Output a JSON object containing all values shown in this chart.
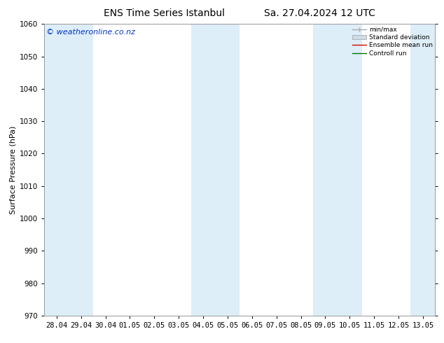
{
  "title": "ENS Time Series Istanbul",
  "date_label": "Sa. 27.04.2024 12 UTC",
  "ylabel": "Surface Pressure (hPa)",
  "watermark": "© weatheronline.co.nz",
  "ylim": [
    970,
    1060
  ],
  "yticks": [
    970,
    980,
    990,
    1000,
    1010,
    1020,
    1030,
    1040,
    1050,
    1060
  ],
  "xtick_labels": [
    "28.04",
    "29.04",
    "30.04",
    "01.05",
    "02.05",
    "03.05",
    "04.05",
    "05.05",
    "06.05",
    "07.05",
    "08.05",
    "09.05",
    "10.05",
    "11.05",
    "12.05",
    "13.05"
  ],
  "shaded_columns": [
    0,
    1,
    6,
    7,
    11,
    12,
    15
  ],
  "shade_color": "#ddeef8",
  "background_color": "#ffffff",
  "plot_bg_color": "#ffffff",
  "spine_color": "#999999",
  "minmax_color": "#aaaaaa",
  "stddev_color": "#ccdde8",
  "ensemble_color": "#dd0000",
  "control_color": "#007700",
  "title_fontsize": 10,
  "axis_label_fontsize": 8,
  "tick_fontsize": 7.5,
  "watermark_color": "#0033cc",
  "watermark_fontsize": 8
}
